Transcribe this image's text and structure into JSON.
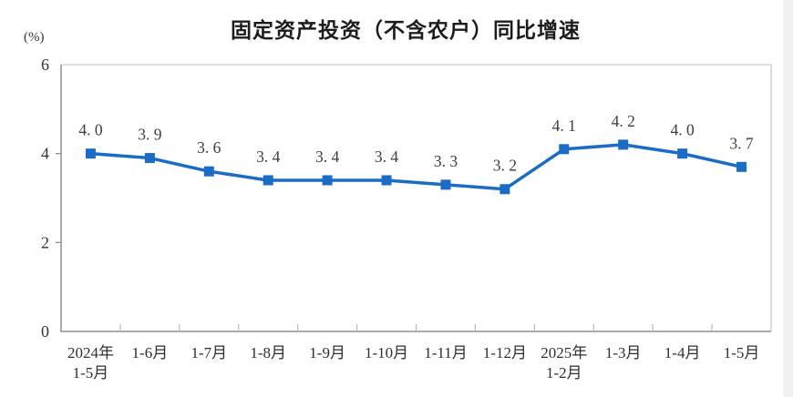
{
  "page": {
    "background": "#ffffff",
    "right_gutter_color": "#f1f1f1"
  },
  "chart_data": {
    "type": "line",
    "title": "固定资产投资（不含农户）同比增速",
    "ylabel": "(%)",
    "xlabel": "",
    "categories": [
      "2024年\n1-5月",
      "1-6月",
      "1-7月",
      "1-8月",
      "1-9月",
      "1-10月",
      "1-11月",
      "1-12月",
      "2025年\n1-2月",
      "1-3月",
      "1-4月",
      "1-5月"
    ],
    "values": [
      4.0,
      3.9,
      3.6,
      3.4,
      3.4,
      3.4,
      3.3,
      3.2,
      4.1,
      4.2,
      4.0,
      3.7
    ],
    "point_labels": [
      "4. 0",
      "3. 9",
      "3. 6",
      "3. 4",
      "3. 4",
      "3. 4",
      "3. 3",
      "3. 2",
      "4. 1",
      "4. 2",
      "4. 0",
      "3. 7"
    ],
    "yticks": [
      0,
      2,
      4,
      6
    ],
    "ylim": [
      0,
      6
    ],
    "grid": false,
    "legend_position": "none",
    "line_color": "#1b6cc7",
    "marker": "square",
    "axis_color": "#8f8f8f",
    "border_color": "#c9c9c9",
    "tick_color": "#b9b9b9",
    "label_color": "#3d3d3d"
  }
}
